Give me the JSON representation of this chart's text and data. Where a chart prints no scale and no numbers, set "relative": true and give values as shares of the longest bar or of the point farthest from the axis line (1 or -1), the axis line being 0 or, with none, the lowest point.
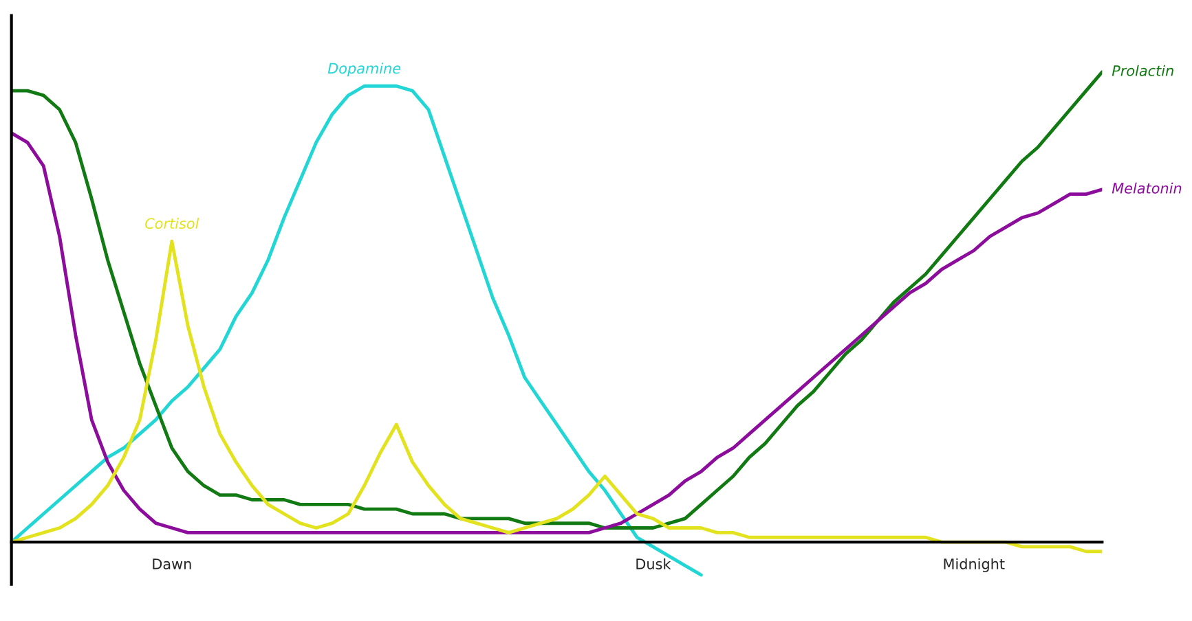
{
  "chart_data": {
    "type": "line",
    "relative": true,
    "legend": false,
    "grid": false,
    "marker": "none",
    "line_style": "solid",
    "categories": [
      null,
      null,
      null,
      null,
      null,
      null,
      null,
      null,
      null,
      null,
      "Dawn",
      null,
      null,
      null,
      null,
      null,
      null,
      null,
      null,
      null,
      null,
      null,
      null,
      null,
      null,
      null,
      null,
      null,
      null,
      null,
      null,
      null,
      null,
      null,
      null,
      null,
      null,
      null,
      null,
      null,
      "Dusk",
      null,
      null,
      null,
      null,
      null,
      null,
      null,
      null,
      null,
      null,
      null,
      null,
      null,
      null,
      null,
      null,
      null,
      null,
      null,
      "Midnight",
      null,
      null,
      null,
      null,
      null,
      null,
      null,
      null
    ],
    "series": [
      {
        "name": "Dopamine",
        "color": "#22d6d6",
        "values": [
          0,
          0.03,
          0.06,
          0.09,
          0.12,
          0.15,
          0.18,
          0.2,
          0.23,
          0.26,
          0.3,
          0.33,
          0.37,
          0.41,
          0.48,
          0.53,
          0.6,
          0.69,
          0.77,
          0.85,
          0.91,
          0.95,
          0.97,
          0.97,
          0.97,
          0.96,
          0.92,
          0.82,
          0.72,
          0.62,
          0.52,
          0.44,
          0.35,
          0.3,
          0.25,
          0.2,
          0.15,
          0.11,
          0.06,
          0.01,
          -0.01,
          -0.03,
          -0.05,
          -0.07,
          null,
          null,
          null,
          null,
          null,
          null,
          null,
          null,
          null,
          null,
          null,
          null,
          null,
          null,
          null,
          null,
          null,
          null,
          null,
          null,
          null,
          null,
          null,
          null,
          null
        ]
      },
      {
        "name": "Prolactin",
        "color": "#127a12",
        "values": [
          0.96,
          0.96,
          0.95,
          0.92,
          0.85,
          0.73,
          0.6,
          0.49,
          0.38,
          0.29,
          0.2,
          0.15,
          0.12,
          0.1,
          0.1,
          0.09,
          0.09,
          0.09,
          0.08,
          0.08,
          0.08,
          0.08,
          0.07,
          0.07,
          0.07,
          0.06,
          0.06,
          0.06,
          0.05,
          0.05,
          0.05,
          0.05,
          0.04,
          0.04,
          0.04,
          0.04,
          0.04,
          0.03,
          0.03,
          0.03,
          0.03,
          0.04,
          0.05,
          0.08,
          0.11,
          0.14,
          0.18,
          0.21,
          0.25,
          0.29,
          0.32,
          0.36,
          0.4,
          0.43,
          0.47,
          0.51,
          0.54,
          0.57,
          0.61,
          0.65,
          0.69,
          0.73,
          0.77,
          0.81,
          0.84,
          0.88,
          0.92,
          0.96,
          1
        ]
      },
      {
        "name": "Melatonin",
        "color": "#8c0c9c",
        "values": [
          0.87,
          0.85,
          0.8,
          0.65,
          0.44,
          0.26,
          0.17,
          0.11,
          0.07,
          0.04,
          0.03,
          0.02,
          0.02,
          0.02,
          0.02,
          0.02,
          0.02,
          0.02,
          0.02,
          0.02,
          0.02,
          0.02,
          0.02,
          0.02,
          0.02,
          0.02,
          0.02,
          0.02,
          0.02,
          0.02,
          0.02,
          0.02,
          0.02,
          0.02,
          0.02,
          0.02,
          0.02,
          0.03,
          0.04,
          0.06,
          0.08,
          0.1,
          0.13,
          0.15,
          0.18,
          0.2,
          0.23,
          0.26,
          0.29,
          0.32,
          0.35,
          0.38,
          0.41,
          0.44,
          0.47,
          0.5,
          0.53,
          0.55,
          0.58,
          0.6,
          0.62,
          0.65,
          0.67,
          0.69,
          0.7,
          0.72,
          0.74,
          0.74,
          0.75
        ]
      },
      {
        "name": "Cortisol",
        "color": "#e2e21e",
        "values": [
          0,
          0.01,
          0.02,
          0.03,
          0.05,
          0.08,
          0.12,
          0.18,
          0.26,
          0.43,
          0.64,
          0.46,
          0.33,
          0.23,
          0.17,
          0.12,
          0.08,
          0.06,
          0.04,
          0.03,
          0.04,
          0.06,
          0.12,
          0.19,
          0.25,
          0.17,
          0.12,
          0.08,
          0.05,
          0.04,
          0.03,
          0.02,
          0.03,
          0.04,
          0.05,
          0.07,
          0.1,
          0.14,
          0.1,
          0.06,
          0.05,
          0.03,
          0.03,
          0.03,
          0.02,
          0.02,
          0.01,
          0.01,
          0.01,
          0.01,
          0.01,
          0.01,
          0.01,
          0.01,
          0.01,
          0.01,
          0.01,
          0.01,
          0,
          0,
          0,
          0,
          0,
          -0.01,
          -0.01,
          -0.01,
          -0.01,
          -0.02,
          -0.02
        ]
      }
    ]
  }
}
